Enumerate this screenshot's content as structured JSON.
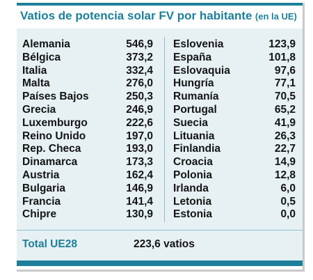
{
  "header": {
    "title": "Vatios de potencia solar FV  por habitante",
    "subtitle": "(en la UE)"
  },
  "left_column": [
    {
      "country": "Alemania",
      "value": "546,9"
    },
    {
      "country": "Bélgica",
      "value": "373,2"
    },
    {
      "country": "Italia",
      "value": "332,4"
    },
    {
      "country": "Malta",
      "value": "276,0"
    },
    {
      "country": "Países Bajos",
      "value": "250,3"
    },
    {
      "country": "Grecia",
      "value": "246,9"
    },
    {
      "country": "Luxemburgo",
      "value": "222,6"
    },
    {
      "country": "Reino Unido",
      "value": "197,0"
    },
    {
      "country": "Rep. Checa",
      "value": "193,0"
    },
    {
      "country": "Dinamarca",
      "value": "173,3"
    },
    {
      "country": "Austria",
      "value": "162,4"
    },
    {
      "country": "Bulgaria",
      "value": "146,9"
    },
    {
      "country": "Francia",
      "value": "141,4"
    },
    {
      "country": "Chipre",
      "value": "130,9"
    }
  ],
  "right_column": [
    {
      "country": "Eslovenia",
      "value": "123,9"
    },
    {
      "country": "España",
      "value": "101,8"
    },
    {
      "country": "Eslovaquia",
      "value": "97,6"
    },
    {
      "country": "Hungría",
      "value": "77,1"
    },
    {
      "country": "Rumanía",
      "value": "70,5"
    },
    {
      "country": "Portugal",
      "value": "65,2"
    },
    {
      "country": "Suecia",
      "value": "41,9"
    },
    {
      "country": "Lituania",
      "value": "26,3"
    },
    {
      "country": "Finlandia",
      "value": "22,7"
    },
    {
      "country": "Croacia",
      "value": "14,9"
    },
    {
      "country": "Polonia",
      "value": "12,8"
    },
    {
      "country": "Irlanda",
      "value": "6,0"
    },
    {
      "country": "Letonia",
      "value": "0,5"
    },
    {
      "country": "Estonia",
      "value": "0,0"
    }
  ],
  "total": {
    "label": "Total UE28",
    "value": "223,6 vatios"
  },
  "colors": {
    "accent": "#1d7f99",
    "panel_background": "#e7f1f4",
    "text": "#141414"
  }
}
